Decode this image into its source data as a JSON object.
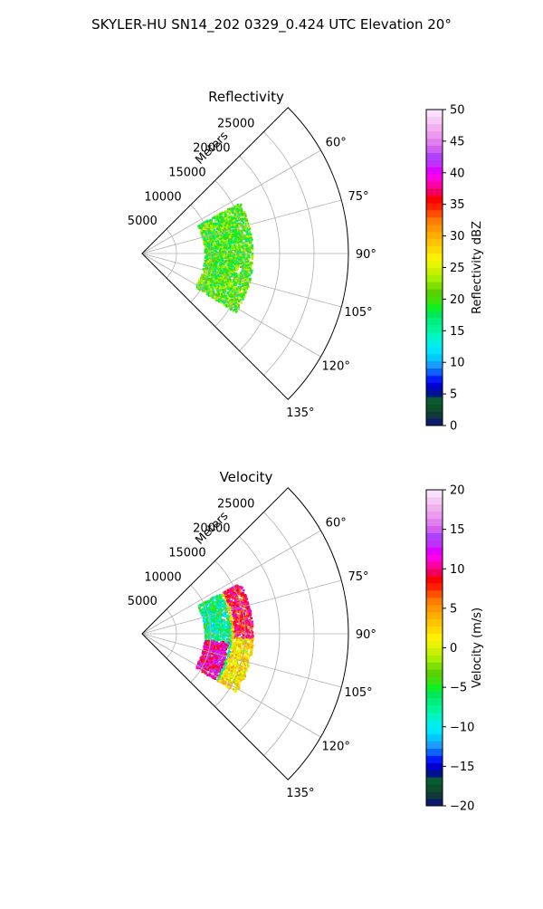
{
  "suptitle": "SKYLER-HU  SN14_202  0329_0.424 UTC Elevation 20°",
  "chart_data": [
    {
      "type": "heatmap",
      "subtype": "polar-sector",
      "title": "Reflectivity",
      "radial_axis_label": "Meters",
      "radial_ticks": [
        {
          "value": 5000,
          "label": "5000"
        },
        {
          "value": 10000,
          "label": "10000"
        },
        {
          "value": 15000,
          "label": "15000"
        },
        {
          "value": 20000,
          "label": "20000"
        },
        {
          "value": 25000,
          "label": "25000"
        }
      ],
      "r_range": [
        0,
        30000
      ],
      "theta_range_deg": [
        45,
        135
      ],
      "theta_ticks": [
        {
          "value": 60,
          "label": "60°"
        },
        {
          "value": 75,
          "label": "75°"
        },
        {
          "value": 90,
          "label": "90°"
        },
        {
          "value": 105,
          "label": "105°"
        },
        {
          "value": 120,
          "label": "120°"
        },
        {
          "value": 135,
          "label": "135°"
        }
      ],
      "grid": true,
      "data_extent": {
        "r_range": [
          9000,
          16000
        ],
        "theta_range_deg": [
          62,
          122
        ]
      },
      "colorbar": {
        "label": "Reflectivity dBZ",
        "range": [
          0,
          50
        ],
        "ticks": [
          {
            "value": 0,
            "label": "0"
          },
          {
            "value": 5,
            "label": "5"
          },
          {
            "value": 10,
            "label": "10"
          },
          {
            "value": 15,
            "label": "15"
          },
          {
            "value": 20,
            "label": "20"
          },
          {
            "value": 25,
            "label": "25"
          },
          {
            "value": 30,
            "label": "30"
          },
          {
            "value": 35,
            "label": "35"
          },
          {
            "value": 40,
            "label": "40"
          },
          {
            "value": 45,
            "label": "45"
          },
          {
            "value": 50,
            "label": "50"
          }
        ],
        "colors": [
          "#0b1c6b",
          "#123a3a",
          "#0c4f2a",
          "#0a5b34",
          "#00138f",
          "#0000cf",
          "#001cff",
          "#0a63ff",
          "#1b9dff",
          "#00c9ff",
          "#00e6ff",
          "#00f0e6",
          "#00f5c0",
          "#00f59a",
          "#00f080",
          "#00e85a",
          "#10f020",
          "#40e010",
          "#5ad000",
          "#7de000",
          "#a8ee00",
          "#c8f000",
          "#e6f500",
          "#fff000",
          "#ffd800",
          "#ffc400",
          "#ffae00",
          "#ff9600",
          "#ff7c00",
          "#ff5000",
          "#ff2000",
          "#ff0000",
          "#f0005a",
          "#ff00a0",
          "#ff00e0",
          "#e000ff",
          "#c030ff",
          "#b040ff",
          "#d060f0",
          "#e080ee",
          "#ee99ee",
          "#f0b0f0",
          "#f5c8f5",
          "#fae0fa"
        ]
      }
    },
    {
      "type": "heatmap",
      "subtype": "polar-sector",
      "title": "Velocity",
      "radial_axis_label": "Meters",
      "radial_ticks": [
        {
          "value": 5000,
          "label": "5000"
        },
        {
          "value": 10000,
          "label": "10000"
        },
        {
          "value": 15000,
          "label": "15000"
        },
        {
          "value": 20000,
          "label": "20000"
        },
        {
          "value": 25000,
          "label": "25000"
        }
      ],
      "r_range": [
        0,
        30000
      ],
      "theta_range_deg": [
        45,
        135
      ],
      "theta_ticks": [
        {
          "value": 60,
          "label": "60°"
        },
        {
          "value": 75,
          "label": "75°"
        },
        {
          "value": 90,
          "label": "90°"
        },
        {
          "value": 105,
          "label": "105°"
        },
        {
          "value": 120,
          "label": "120°"
        },
        {
          "value": 135,
          "label": "135°"
        }
      ],
      "grid": true,
      "data_extent": {
        "r_range": [
          9000,
          16000
        ],
        "theta_range_deg": [
          62,
          122
        ]
      },
      "colorbar": {
        "label": "Velocity (m/s)",
        "range": [
          -20,
          20
        ],
        "ticks": [
          {
            "value": -20,
            "label": "−20"
          },
          {
            "value": -15,
            "label": "−15"
          },
          {
            "value": -10,
            "label": "−10"
          },
          {
            "value": -5,
            "label": "−5"
          },
          {
            "value": 0,
            "label": "0"
          },
          {
            "value": 5,
            "label": "5"
          },
          {
            "value": 10,
            "label": "10"
          },
          {
            "value": 15,
            "label": "15"
          },
          {
            "value": 20,
            "label": "20"
          }
        ],
        "colors": [
          "#0b1c6b",
          "#123a3a",
          "#0c4f2a",
          "#0a5b34",
          "#00138f",
          "#0000cf",
          "#001cff",
          "#0a63ff",
          "#1b9dff",
          "#00c9ff",
          "#00e6ff",
          "#00f0e6",
          "#00f5c0",
          "#00f59a",
          "#00f080",
          "#00e85a",
          "#10f020",
          "#40e010",
          "#5ad000",
          "#7de000",
          "#a8ee00",
          "#c8f000",
          "#e6f500",
          "#fff000",
          "#ffd800",
          "#ffc400",
          "#ffae00",
          "#ff9600",
          "#ff7c00",
          "#ff5000",
          "#ff2000",
          "#ff0000",
          "#f0005a",
          "#ff00a0",
          "#ff00e0",
          "#e000ff",
          "#c030ff",
          "#b040ff",
          "#d060f0",
          "#e080ee",
          "#ee99ee",
          "#f0b0f0",
          "#f5c8f5",
          "#fae0fa"
        ]
      }
    }
  ]
}
